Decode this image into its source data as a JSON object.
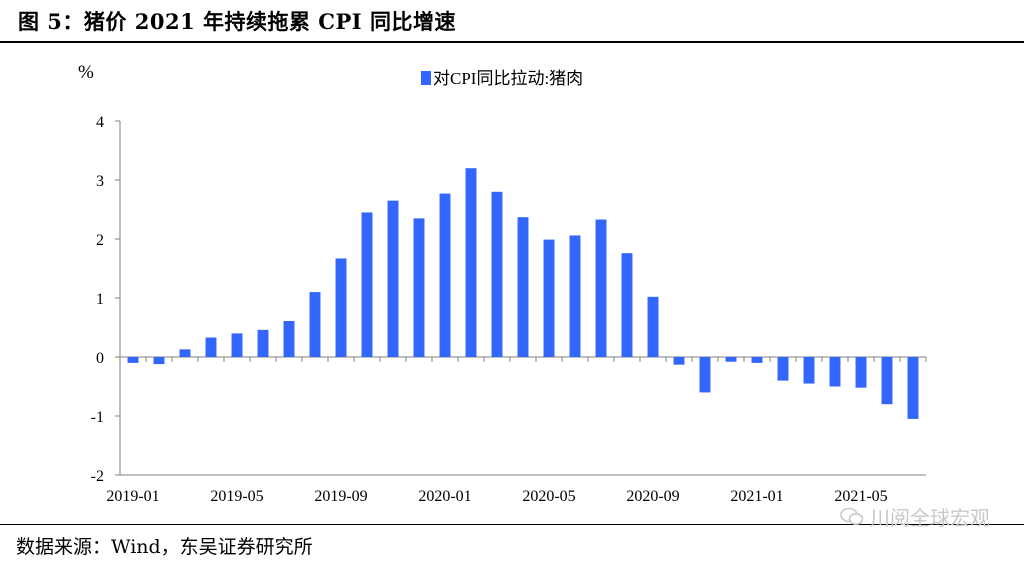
{
  "figure": {
    "title": "图 5：猪价 2021 年持续拖累 CPI 同比增速",
    "source": "数据来源：Wind，东吴证券研究所",
    "watermark": "川阅全球宏观"
  },
  "chart_data": {
    "type": "bar",
    "ylabel": "%",
    "ylim": [
      -2,
      4
    ],
    "yticks": [
      -2,
      -1,
      0,
      1,
      2,
      3,
      4
    ],
    "legend_position": "top-center",
    "grid": false,
    "bar_color": "#3366FF",
    "x": [
      "2019-01",
      "2019-02",
      "2019-03",
      "2019-04",
      "2019-05",
      "2019-06",
      "2019-07",
      "2019-08",
      "2019-09",
      "2019-10",
      "2019-11",
      "2019-12",
      "2020-01",
      "2020-02",
      "2020-03",
      "2020-04",
      "2020-05",
      "2020-06",
      "2020-07",
      "2020-08",
      "2020-09",
      "2020-10",
      "2020-11",
      "2020-12",
      "2021-01",
      "2021-02",
      "2021-03",
      "2021-04",
      "2021-05",
      "2021-06",
      "2021-07"
    ],
    "xtick_labels": [
      "2019-01",
      "2019-05",
      "2019-09",
      "2020-01",
      "2020-05",
      "2020-09",
      "2021-01",
      "2021-05"
    ],
    "xtick_every": 4,
    "series": [
      {
        "name": "对CPI同比拉动:猪肉",
        "values": [
          -0.1,
          -0.12,
          0.13,
          0.33,
          0.4,
          0.46,
          0.61,
          1.1,
          1.67,
          2.45,
          2.65,
          2.35,
          2.77,
          3.2,
          2.8,
          2.37,
          1.99,
          2.06,
          2.33,
          1.76,
          1.02,
          -0.13,
          -0.6,
          -0.08,
          -0.1,
          -0.4,
          -0.45,
          -0.5,
          -0.52,
          -0.8,
          -1.05
        ]
      }
    ]
  }
}
